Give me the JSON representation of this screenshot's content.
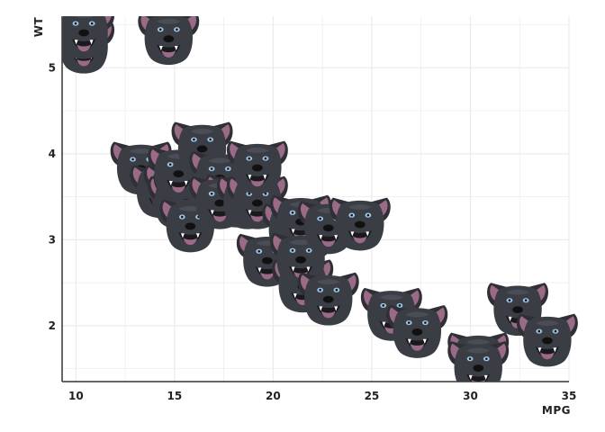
{
  "chart_data": {
    "type": "scatter",
    "title": "",
    "xlabel": "MPG",
    "ylabel": "WT",
    "xlim": [
      9.3,
      35
    ],
    "ylim": [
      1.35,
      5.6
    ],
    "xticks": [
      "10",
      "15",
      "20",
      "25",
      "30",
      "35"
    ],
    "yticks": [
      "2",
      "3",
      "4",
      "5"
    ],
    "grid": true,
    "marker": "dog-face-icon",
    "colors": {
      "marker_fur": "#3b3d44",
      "marker_mouth": "#9a6a86",
      "grid": "#ebebeb",
      "axis": "#333333"
    },
    "points": [
      {
        "x": 10.4,
        "y": 5.25
      },
      {
        "x": 10.4,
        "y": 5.42
      },
      {
        "x": 14.7,
        "y": 5.35
      },
      {
        "x": 13.3,
        "y": 3.84
      },
      {
        "x": 14.3,
        "y": 3.57
      },
      {
        "x": 15.0,
        "y": 3.57
      },
      {
        "x": 15.2,
        "y": 3.44
      },
      {
        "x": 15.5,
        "y": 3.52
      },
      {
        "x": 15.8,
        "y": 3.17
      },
      {
        "x": 15.2,
        "y": 3.78
      },
      {
        "x": 16.4,
        "y": 4.07
      },
      {
        "x": 17.3,
        "y": 3.73
      },
      {
        "x": 18.1,
        "y": 3.46
      },
      {
        "x": 17.3,
        "y": 3.44
      },
      {
        "x": 18.7,
        "y": 3.44
      },
      {
        "x": 19.2,
        "y": 3.44
      },
      {
        "x": 19.2,
        "y": 3.85
      },
      {
        "x": 19.7,
        "y": 2.77
      },
      {
        "x": 21.0,
        "y": 3.12
      },
      {
        "x": 21.4,
        "y": 3.22
      },
      {
        "x": 21.5,
        "y": 2.47
      },
      {
        "x": 21.4,
        "y": 2.78
      },
      {
        "x": 22.8,
        "y": 3.15
      },
      {
        "x": 22.8,
        "y": 2.32
      },
      {
        "x": 24.4,
        "y": 3.19
      },
      {
        "x": 26.0,
        "y": 2.14
      },
      {
        "x": 27.3,
        "y": 1.94
      },
      {
        "x": 30.4,
        "y": 1.62
      },
      {
        "x": 30.4,
        "y": 1.52
      },
      {
        "x": 32.4,
        "y": 2.2
      },
      {
        "x": 33.9,
        "y": 1.84
      }
    ]
  }
}
